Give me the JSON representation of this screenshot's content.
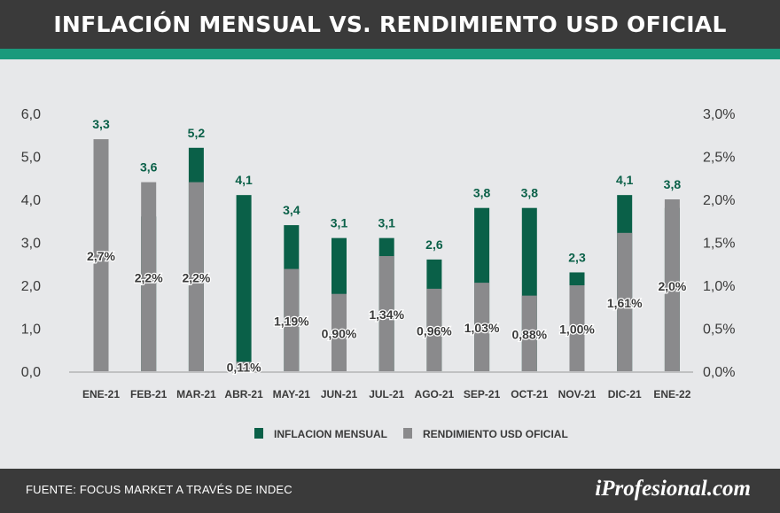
{
  "header": {
    "title": "INFLACIÓN MENSUAL VS. RENDIMIENTO USD OFICIAL"
  },
  "footer": {
    "source": "FUENTE: FOCUS MARKET A TRAVÉS DE INDEC",
    "brand": "iProfesional.com"
  },
  "colors": {
    "inflation": "#0a6048",
    "usd": "#8a8a8c",
    "teal": "#1a9a7c",
    "dark": "#3a3a3a",
    "panel": "#e7e8ea"
  },
  "chart_data": {
    "type": "bar",
    "title": "INFLACIÓN MENSUAL VS. RENDIMIENTO USD OFICIAL",
    "categories": [
      "ENE-21",
      "FEB-21",
      "MAR-21",
      "ABR-21",
      "MAY-21",
      "JUN-21",
      "JUL-21",
      "AGO-21",
      "SEP-21",
      "OCT-21",
      "NOV-21",
      "DIC-21",
      "ENE-22"
    ],
    "series": [
      {
        "name": "INFLACION MENSUAL",
        "axis": "left",
        "values": [
          3.3,
          3.6,
          5.2,
          4.1,
          3.4,
          3.1,
          3.1,
          2.6,
          3.8,
          3.8,
          2.3,
          4.1,
          3.8
        ],
        "labels": [
          "3,3",
          "3,6",
          "5,2",
          "4,1",
          "3,4",
          "3,1",
          "3,1",
          "2,6",
          "3,8",
          "3,8",
          "2,3",
          "4,1",
          "3,8"
        ]
      },
      {
        "name": "RENDIMIENTO USD OFICIAL",
        "axis": "right",
        "values": [
          2.7,
          2.2,
          2.2,
          0.11,
          1.19,
          0.9,
          1.34,
          0.96,
          1.03,
          0.88,
          1.0,
          1.61,
          2.0
        ],
        "labels": [
          "2,7%",
          "2,2%",
          "2,2%",
          "0,11%",
          "1,19%",
          "0,90%",
          "1,34%",
          "0,96%",
          "1,03%",
          "0,88%",
          "1,00%",
          "1,61%",
          "2,0%"
        ]
      }
    ],
    "left_axis": {
      "ylim": [
        0,
        6
      ],
      "ticks": [
        "0,0",
        "1,0",
        "2,0",
        "3,0",
        "4,0",
        "5,0",
        "6,0"
      ]
    },
    "right_axis": {
      "ylim": [
        0,
        3
      ],
      "ticks": [
        "0,0%",
        "0,5%",
        "1,0%",
        "1,5%",
        "2,0%",
        "2,5%",
        "3,0%"
      ]
    },
    "legend": {
      "position": "bottom",
      "items": [
        "INFLACION MENSUAL",
        "RENDIMIENTO USD OFICIAL"
      ]
    }
  }
}
